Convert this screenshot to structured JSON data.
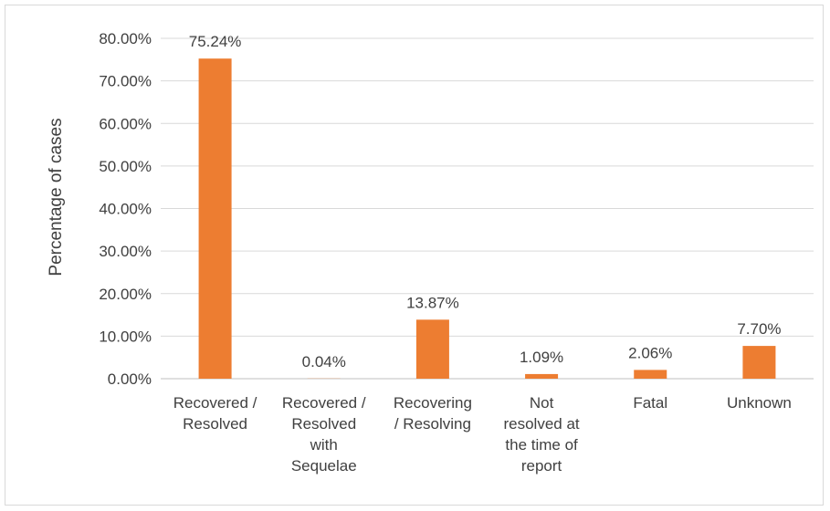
{
  "chart_data": {
    "type": "bar",
    "title": "",
    "xlabel": "",
    "ylabel": "Percentage of cases",
    "ylim": [
      0,
      80
    ],
    "yticks": [
      "0.00%",
      "10.00%",
      "20.00%",
      "30.00%",
      "40.00%",
      "50.00%",
      "60.00%",
      "70.00%",
      "80.00%"
    ],
    "grid": true,
    "bar_color": "#ED7D31",
    "categories": [
      [
        "Recovered /",
        "Resolved"
      ],
      [
        "Recovered /",
        "Resolved",
        "with",
        "Sequelae"
      ],
      [
        "Recovering",
        "/ Resolving"
      ],
      [
        "Not",
        "resolved at",
        "the time of",
        "report"
      ],
      [
        "Fatal"
      ],
      [
        "Unknown"
      ]
    ],
    "values": [
      75.24,
      0.04,
      13.87,
      1.09,
      2.06,
      7.7
    ],
    "data_labels": [
      "75.24%",
      "0.04%",
      "13.87%",
      "1.09%",
      "2.06%",
      "7.70%"
    ]
  }
}
